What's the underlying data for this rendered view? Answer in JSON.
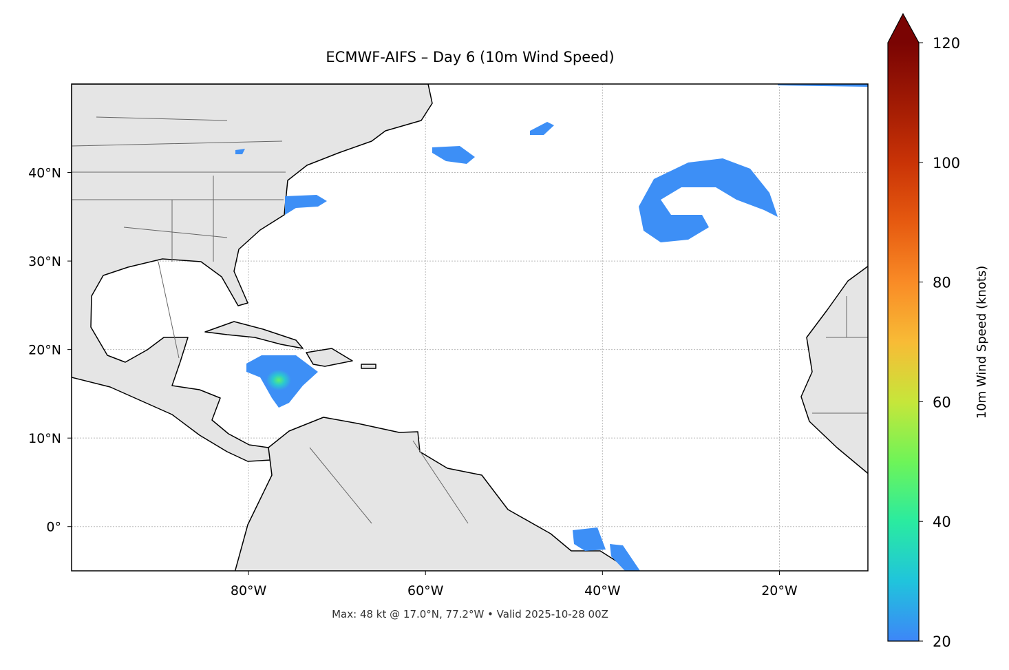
{
  "chart_data": {
    "type": "map",
    "title": "ECMWF-AIFS – Day 6 (10m Wind Speed)",
    "footer": "Max: 48 kt @ 17.0°N, 77.2°W • Valid 2025-10-28 00Z",
    "xlim": [
      -100,
      -10
    ],
    "ylim": [
      -5,
      50
    ],
    "xticks": [
      {
        "value": -80,
        "label": "80°W"
      },
      {
        "value": -60,
        "label": "60°W"
      },
      {
        "value": -40,
        "label": "40°W"
      },
      {
        "value": -20,
        "label": "20°W"
      }
    ],
    "yticks": [
      {
        "value": 0,
        "label": "0°"
      },
      {
        "value": 10,
        "label": "10°N"
      },
      {
        "value": 20,
        "label": "20°N"
      },
      {
        "value": 30,
        "label": "30°N"
      },
      {
        "value": 40,
        "label": "40°N"
      }
    ],
    "grid": true,
    "colorbar": {
      "label": "10m Wind Speed (knots)",
      "lim": [
        20,
        120
      ],
      "ticks": [
        20,
        40,
        60,
        80,
        100,
        120
      ]
    }
  }
}
